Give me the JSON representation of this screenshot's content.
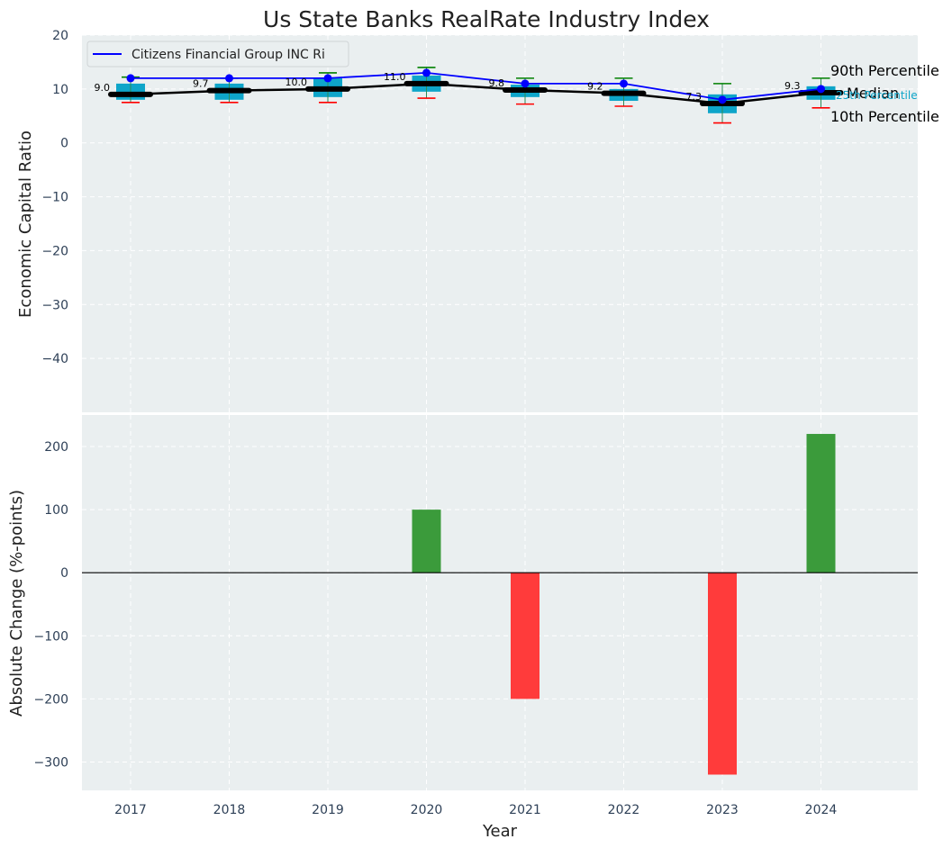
{
  "chart_data": {
    "type": "box-and-bar",
    "title": "Us State Banks RealRate Industry Index",
    "xlabel": "Year",
    "categories": [
      "2017",
      "2018",
      "2019",
      "2020",
      "2021",
      "2022",
      "2023",
      "2024"
    ],
    "top_panel": {
      "ylabel": "Economic Capital Ratio",
      "ylim": [
        -50,
        20
      ],
      "yticks": [
        "20",
        "10",
        "0",
        "−10",
        "−20",
        "−30",
        "−40"
      ],
      "grid": true,
      "legend_position": "upper-left",
      "company_series": {
        "name": "Citizens Financial Group INC Ri",
        "values": [
          12.0,
          12.0,
          12.0,
          13.0,
          11.0,
          11.0,
          8.0,
          10.0
        ],
        "color": "#0000ff"
      },
      "median_series": {
        "values": [
          9.0,
          9.7,
          10.0,
          11.0,
          9.8,
          9.2,
          7.3,
          9.3
        ],
        "color": "#000000"
      },
      "median_labels": [
        "9.0",
        "9.7",
        "10.0",
        "11.0",
        "9.8",
        "9.2",
        "7.3",
        "9.3"
      ],
      "p90": [
        12.2,
        12.0,
        13.0,
        14.0,
        12.0,
        12.0,
        11.0,
        12.0
      ],
      "p10": [
        7.5,
        7.5,
        7.5,
        8.3,
        7.2,
        6.8,
        3.7,
        6.5
      ],
      "q75": [
        11.0,
        11.0,
        12.0,
        12.5,
        10.8,
        10.0,
        9.0,
        10.5
      ],
      "q25": [
        8.0,
        8.0,
        8.5,
        9.5,
        8.5,
        7.8,
        5.5,
        8.0
      ],
      "percentile_labels": {
        "p90": "90th Percentile",
        "median": "Median",
        "q25": "25th Percentile",
        "p10": "10th Percentile"
      },
      "colors": {
        "box": "#0ea5c9",
        "p90": "#008000",
        "p10": "#ff0000",
        "q25_label": "#0ea5c9"
      }
    },
    "bottom_panel": {
      "ylabel": "Absolute Change (%-points)",
      "ylim": [
        -345,
        250
      ],
      "yticks": [
        "200",
        "100",
        "0",
        "−100",
        "−200",
        "−300"
      ],
      "values": [
        0,
        0,
        0,
        100,
        -200,
        0,
        -320,
        220
      ],
      "colors": {
        "positive": "#3b9b3b",
        "negative": "#ff3b3b"
      }
    }
  }
}
